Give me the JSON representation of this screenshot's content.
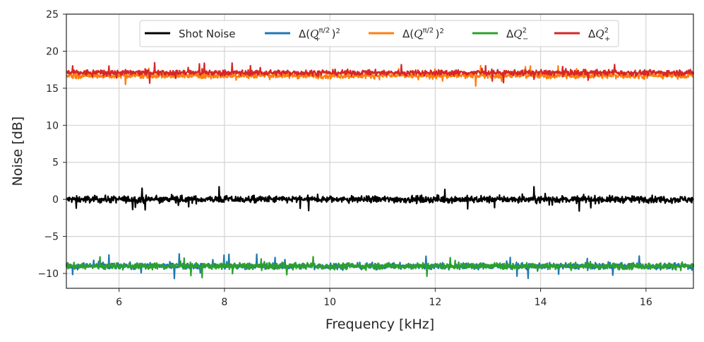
{
  "chart_data": {
    "type": "line",
    "xlabel": "Frequency [kHz]",
    "ylabel": "Noise [dB]",
    "xlim": [
      5.0,
      16.9
    ],
    "ylim": [
      -12,
      25
    ],
    "xticks": [
      6,
      8,
      10,
      12,
      14,
      16
    ],
    "yticks": [
      -10,
      -5,
      0,
      5,
      10,
      15,
      20,
      25
    ],
    "ytick_labels": [
      "−10",
      "−5",
      "0",
      "5",
      "10",
      "15",
      "20",
      "25"
    ],
    "grid": true,
    "legend_position": "top-center",
    "series": [
      {
        "name": "Shot Noise",
        "color": "#000000",
        "mean": 0.0,
        "jitter": 0.55,
        "peak": 1.6
      },
      {
        "name": "Δ(Q₊^{π/2})²",
        "color": "#1f77b4",
        "mean": -9.0,
        "jitter": 0.5,
        "peak": 1.6
      },
      {
        "name": "Δ(Q₋^{π/2})²",
        "color": "#ff7f0e",
        "mean": 16.7,
        "jitter": 0.45,
        "peak": 1.3
      },
      {
        "name": "ΔQ₋²",
        "color": "#2ca02c",
        "mean": -9.0,
        "jitter": 0.5,
        "peak": 1.5
      },
      {
        "name": "ΔQ₊²",
        "color": "#d62728",
        "mean": 17.1,
        "jitter": 0.45,
        "peak": 1.3
      }
    ]
  }
}
